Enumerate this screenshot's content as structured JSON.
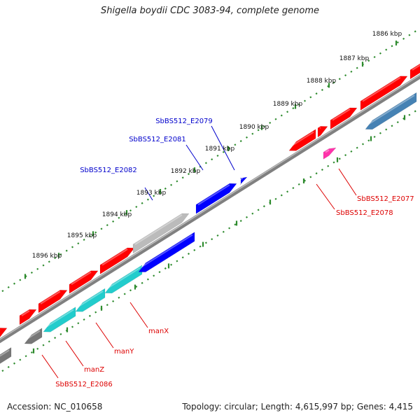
{
  "title": "Shigella boydii CDC 3083-94, complete genome",
  "footer": {
    "accession": "Accession: NC_010658",
    "topology": "Topology: circular; Length: 4,615,997 bp; Genes: 4,415"
  },
  "colors": {
    "backbone": "#8a8a8a",
    "ticks": "#2e8b2e",
    "gene_red": "#ff0000",
    "gene_blue": "#0000ff",
    "gene_cyan": "#22cccc",
    "gene_gray": "#777777",
    "gene_lightgray": "#bbbbbb",
    "gene_steel": "#4682b4",
    "gene_magenta": "#ff33aa",
    "label_red": "#dd0000",
    "label_blue": "#0000cc"
  },
  "kbp_labels": [
    "1886 kbp",
    "1887 kbp",
    "1888 kbp",
    "1889 kbp",
    "1890 kbp",
    "1891 kbp",
    "1892 kbp",
    "1893 kbp",
    "1894 kbp",
    "1895 kbp",
    "1896 kbp"
  ],
  "gene_labels": [
    {
      "text": "SbBS512_E2079",
      "color": "blue"
    },
    {
      "text": "SbBS512_E2081",
      "color": "blue"
    },
    {
      "text": "SbBS512_E2082",
      "color": "blue"
    },
    {
      "text": "SbBS512_E2077",
      "color": "red"
    },
    {
      "text": "SbBS512_E2078",
      "color": "red"
    },
    {
      "text": "manX",
      "color": "red"
    },
    {
      "text": "manY",
      "color": "red"
    },
    {
      "text": "manZ",
      "color": "red"
    },
    {
      "text": "SbBS512_E2086",
      "color": "red"
    }
  ]
}
